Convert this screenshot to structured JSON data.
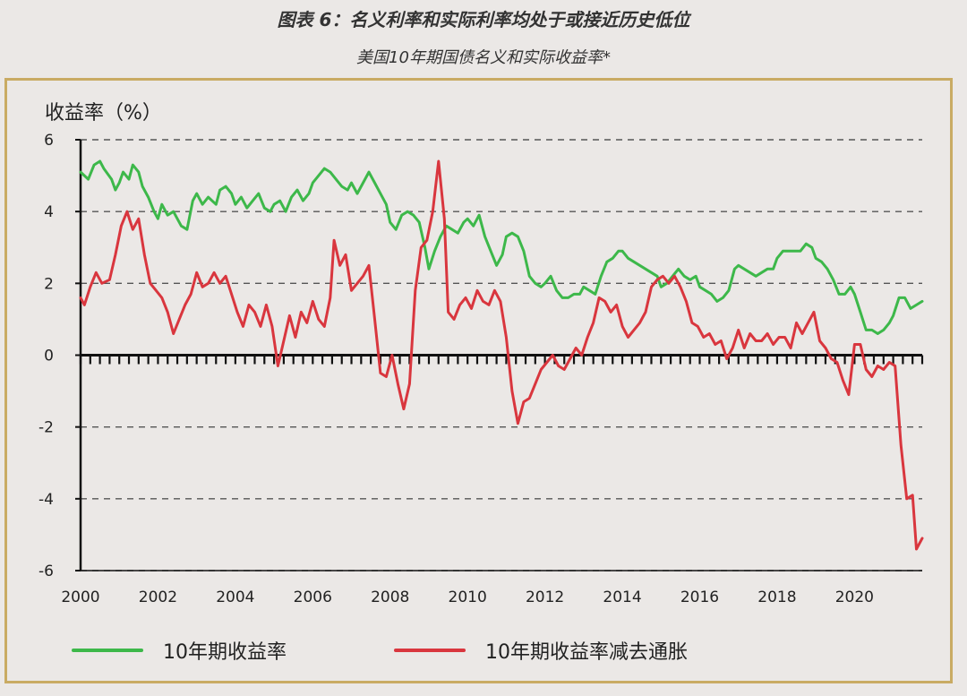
{
  "header": {
    "title": "图表 6：名义利率和实际利率均处于或接近历史低位",
    "subtitle": "美国10年期国债名义和实际收益率*"
  },
  "colors": {
    "nominal": "#3db84a",
    "real": "#d9363e",
    "border": "#c9ab63",
    "background": "#ebe8e6"
  },
  "chart_data": {
    "type": "line",
    "ylabel": "收益率（%）",
    "xlabel": "",
    "xlim": [
      2000,
      2021.75
    ],
    "ylim": [
      -6,
      6
    ],
    "x_ticks": [
      "2000",
      "2002",
      "2004",
      "2006",
      "2008",
      "2010",
      "2012",
      "2014",
      "2016",
      "2018",
      "2020"
    ],
    "y_ticks": [
      "6",
      "4",
      "2",
      "0",
      "-2",
      "-4",
      "-6"
    ],
    "grid": "horizontal dashed",
    "legend_position": "bottom",
    "series": [
      {
        "name": "10年期收益率",
        "color": "#3db84a",
        "points": [
          [
            2000.0,
            5.1
          ],
          [
            2000.1,
            5.0
          ],
          [
            2000.2,
            4.9
          ],
          [
            2000.35,
            5.3
          ],
          [
            2000.5,
            5.4
          ],
          [
            2000.6,
            5.2
          ],
          [
            2000.8,
            4.9
          ],
          [
            2000.9,
            4.6
          ],
          [
            2001.0,
            4.8
          ],
          [
            2001.1,
            5.1
          ],
          [
            2001.25,
            4.9
          ],
          [
            2001.35,
            5.3
          ],
          [
            2001.5,
            5.1
          ],
          [
            2001.6,
            4.7
          ],
          [
            2001.75,
            4.4
          ],
          [
            2001.9,
            4.0
          ],
          [
            2002.0,
            3.8
          ],
          [
            2002.1,
            4.2
          ],
          [
            2002.25,
            3.9
          ],
          [
            2002.4,
            4.0
          ],
          [
            2002.6,
            3.6
          ],
          [
            2002.75,
            3.5
          ],
          [
            2002.9,
            4.3
          ],
          [
            2003.0,
            4.5
          ],
          [
            2003.15,
            4.2
          ],
          [
            2003.3,
            4.4
          ],
          [
            2003.5,
            4.2
          ],
          [
            2003.6,
            4.6
          ],
          [
            2003.75,
            4.7
          ],
          [
            2003.9,
            4.5
          ],
          [
            2004.0,
            4.2
          ],
          [
            2004.15,
            4.4
          ],
          [
            2004.3,
            4.1
          ],
          [
            2004.45,
            4.3
          ],
          [
            2004.6,
            4.5
          ],
          [
            2004.75,
            4.1
          ],
          [
            2004.9,
            4.0
          ],
          [
            2005.0,
            4.2
          ],
          [
            2005.15,
            4.3
          ],
          [
            2005.3,
            4.0
          ],
          [
            2005.45,
            4.4
          ],
          [
            2005.6,
            4.6
          ],
          [
            2005.75,
            4.3
          ],
          [
            2005.9,
            4.5
          ],
          [
            2006.0,
            4.8
          ],
          [
            2006.15,
            5.0
          ],
          [
            2006.3,
            5.2
          ],
          [
            2006.45,
            5.1
          ],
          [
            2006.6,
            4.9
          ],
          [
            2006.75,
            4.7
          ],
          [
            2006.9,
            4.6
          ],
          [
            2007.0,
            4.8
          ],
          [
            2007.15,
            4.5
          ],
          [
            2007.3,
            4.8
          ],
          [
            2007.45,
            5.1
          ],
          [
            2007.6,
            4.8
          ],
          [
            2007.75,
            4.5
          ],
          [
            2007.9,
            4.2
          ],
          [
            2008.0,
            3.7
          ],
          [
            2008.15,
            3.5
          ],
          [
            2008.3,
            3.9
          ],
          [
            2008.45,
            4.0
          ],
          [
            2008.6,
            3.9
          ],
          [
            2008.75,
            3.7
          ],
          [
            2008.9,
            3.0
          ],
          [
            2009.0,
            2.4
          ],
          [
            2009.15,
            2.9
          ],
          [
            2009.3,
            3.3
          ],
          [
            2009.45,
            3.6
          ],
          [
            2009.6,
            3.5
          ],
          [
            2009.75,
            3.4
          ],
          [
            2009.9,
            3.7
          ],
          [
            2010.0,
            3.8
          ],
          [
            2010.15,
            3.6
          ],
          [
            2010.3,
            3.9
          ],
          [
            2010.45,
            3.3
          ],
          [
            2010.6,
            2.9
          ],
          [
            2010.75,
            2.5
          ],
          [
            2010.9,
            2.8
          ],
          [
            2011.0,
            3.3
          ],
          [
            2011.15,
            3.4
          ],
          [
            2011.3,
            3.3
          ],
          [
            2011.45,
            2.9
          ],
          [
            2011.6,
            2.2
          ],
          [
            2011.75,
            2.0
          ],
          [
            2011.9,
            1.9
          ],
          [
            2012.0,
            2.0
          ],
          [
            2012.15,
            2.2
          ],
          [
            2012.3,
            1.8
          ],
          [
            2012.45,
            1.6
          ],
          [
            2012.6,
            1.6
          ],
          [
            2012.75,
            1.7
          ],
          [
            2012.9,
            1.7
          ],
          [
            2013.0,
            1.9
          ],
          [
            2013.15,
            1.8
          ],
          [
            2013.3,
            1.7
          ],
          [
            2013.45,
            2.2
          ],
          [
            2013.6,
            2.6
          ],
          [
            2013.75,
            2.7
          ],
          [
            2013.9,
            2.9
          ],
          [
            2014.0,
            2.9
          ],
          [
            2014.15,
            2.7
          ],
          [
            2014.3,
            2.6
          ],
          [
            2014.45,
            2.5
          ],
          [
            2014.6,
            2.4
          ],
          [
            2014.75,
            2.3
          ],
          [
            2014.9,
            2.2
          ],
          [
            2015.0,
            1.9
          ],
          [
            2015.15,
            2.0
          ],
          [
            2015.3,
            2.2
          ],
          [
            2015.45,
            2.4
          ],
          [
            2015.6,
            2.2
          ],
          [
            2015.75,
            2.1
          ],
          [
            2015.9,
            2.2
          ],
          [
            2016.0,
            1.9
          ],
          [
            2016.15,
            1.8
          ],
          [
            2016.3,
            1.7
          ],
          [
            2016.45,
            1.5
          ],
          [
            2016.6,
            1.6
          ],
          [
            2016.75,
            1.8
          ],
          [
            2016.9,
            2.4
          ],
          [
            2017.0,
            2.5
          ],
          [
            2017.15,
            2.4
          ],
          [
            2017.3,
            2.3
          ],
          [
            2017.45,
            2.2
          ],
          [
            2017.6,
            2.3
          ],
          [
            2017.75,
            2.4
          ],
          [
            2017.9,
            2.4
          ],
          [
            2018.0,
            2.7
          ],
          [
            2018.15,
            2.9
          ],
          [
            2018.3,
            2.9
          ],
          [
            2018.45,
            2.9
          ],
          [
            2018.6,
            2.9
          ],
          [
            2018.75,
            3.1
          ],
          [
            2018.9,
            3.0
          ],
          [
            2019.0,
            2.7
          ],
          [
            2019.15,
            2.6
          ],
          [
            2019.3,
            2.4
          ],
          [
            2019.45,
            2.1
          ],
          [
            2019.6,
            1.7
          ],
          [
            2019.75,
            1.7
          ],
          [
            2019.9,
            1.9
          ],
          [
            2020.0,
            1.7
          ],
          [
            2020.15,
            1.2
          ],
          [
            2020.3,
            0.7
          ],
          [
            2020.45,
            0.7
          ],
          [
            2020.6,
            0.6
          ],
          [
            2020.75,
            0.7
          ],
          [
            2020.9,
            0.9
          ],
          [
            2021.0,
            1.1
          ],
          [
            2021.15,
            1.6
          ],
          [
            2021.3,
            1.6
          ],
          [
            2021.45,
            1.3
          ],
          [
            2021.6,
            1.4
          ],
          [
            2021.75,
            1.5
          ]
        ]
      },
      {
        "name": "10年期收益率减去通胀",
        "color": "#d9363e",
        "points": [
          [
            2000.0,
            1.6
          ],
          [
            2000.1,
            1.4
          ],
          [
            2000.25,
            1.9
          ],
          [
            2000.4,
            2.3
          ],
          [
            2000.55,
            2.0
          ],
          [
            2000.75,
            2.1
          ],
          [
            2000.9,
            2.8
          ],
          [
            2001.05,
            3.6
          ],
          [
            2001.2,
            4.0
          ],
          [
            2001.35,
            3.5
          ],
          [
            2001.5,
            3.8
          ],
          [
            2001.65,
            2.8
          ],
          [
            2001.8,
            2.0
          ],
          [
            2001.95,
            1.8
          ],
          [
            2002.1,
            1.6
          ],
          [
            2002.25,
            1.2
          ],
          [
            2002.4,
            0.6
          ],
          [
            2002.55,
            1.0
          ],
          [
            2002.7,
            1.4
          ],
          [
            2002.85,
            1.7
          ],
          [
            2003.0,
            2.3
          ],
          [
            2003.15,
            1.9
          ],
          [
            2003.3,
            2.0
          ],
          [
            2003.45,
            2.3
          ],
          [
            2003.6,
            2.0
          ],
          [
            2003.75,
            2.2
          ],
          [
            2003.9,
            1.7
          ],
          [
            2004.05,
            1.2
          ],
          [
            2004.2,
            0.8
          ],
          [
            2004.35,
            1.4
          ],
          [
            2004.5,
            1.2
          ],
          [
            2004.65,
            0.8
          ],
          [
            2004.8,
            1.4
          ],
          [
            2004.95,
            0.8
          ],
          [
            2005.1,
            -0.3
          ],
          [
            2005.25,
            0.4
          ],
          [
            2005.4,
            1.1
          ],
          [
            2005.55,
            0.5
          ],
          [
            2005.7,
            1.2
          ],
          [
            2005.85,
            0.9
          ],
          [
            2006.0,
            1.5
          ],
          [
            2006.15,
            1.0
          ],
          [
            2006.3,
            0.8
          ],
          [
            2006.45,
            1.6
          ],
          [
            2006.55,
            3.2
          ],
          [
            2006.7,
            2.5
          ],
          [
            2006.85,
            2.8
          ],
          [
            2007.0,
            1.8
          ],
          [
            2007.15,
            2.0
          ],
          [
            2007.3,
            2.2
          ],
          [
            2007.45,
            2.5
          ],
          [
            2007.6,
            1.0
          ],
          [
            2007.75,
            -0.5
          ],
          [
            2007.9,
            -0.6
          ],
          [
            2008.05,
            0.0
          ],
          [
            2008.2,
            -0.8
          ],
          [
            2008.35,
            -1.5
          ],
          [
            2008.5,
            -0.8
          ],
          [
            2008.65,
            1.8
          ],
          [
            2008.8,
            3.0
          ],
          [
            2008.95,
            3.2
          ],
          [
            2009.1,
            4.0
          ],
          [
            2009.25,
            5.4
          ],
          [
            2009.4,
            3.8
          ],
          [
            2009.5,
            1.2
          ],
          [
            2009.65,
            1.0
          ],
          [
            2009.8,
            1.4
          ],
          [
            2009.95,
            1.6
          ],
          [
            2010.1,
            1.3
          ],
          [
            2010.25,
            1.8
          ],
          [
            2010.4,
            1.5
          ],
          [
            2010.55,
            1.4
          ],
          [
            2010.7,
            1.8
          ],
          [
            2010.85,
            1.5
          ],
          [
            2011.0,
            0.5
          ],
          [
            2011.15,
            -1.0
          ],
          [
            2011.3,
            -1.9
          ],
          [
            2011.45,
            -1.3
          ],
          [
            2011.6,
            -1.2
          ],
          [
            2011.75,
            -0.8
          ],
          [
            2011.9,
            -0.4
          ],
          [
            2012.05,
            -0.2
          ],
          [
            2012.2,
            0.0
          ],
          [
            2012.35,
            -0.3
          ],
          [
            2012.5,
            -0.4
          ],
          [
            2012.65,
            -0.1
          ],
          [
            2012.8,
            0.2
          ],
          [
            2012.95,
            0.0
          ],
          [
            2013.1,
            0.5
          ],
          [
            2013.25,
            0.9
          ],
          [
            2013.4,
            1.6
          ],
          [
            2013.55,
            1.5
          ],
          [
            2013.7,
            1.2
          ],
          [
            2013.85,
            1.4
          ],
          [
            2014.0,
            0.8
          ],
          [
            2014.15,
            0.5
          ],
          [
            2014.3,
            0.7
          ],
          [
            2014.45,
            0.9
          ],
          [
            2014.6,
            1.2
          ],
          [
            2014.75,
            1.9
          ],
          [
            2014.9,
            2.1
          ],
          [
            2015.05,
            2.2
          ],
          [
            2015.2,
            2.0
          ],
          [
            2015.35,
            2.2
          ],
          [
            2015.5,
            1.9
          ],
          [
            2015.65,
            1.5
          ],
          [
            2015.8,
            0.9
          ],
          [
            2015.95,
            0.8
          ],
          [
            2016.1,
            0.5
          ],
          [
            2016.25,
            0.6
          ],
          [
            2016.4,
            0.3
          ],
          [
            2016.55,
            0.4
          ],
          [
            2016.7,
            -0.1
          ],
          [
            2016.85,
            0.2
          ],
          [
            2017.0,
            0.7
          ],
          [
            2017.15,
            0.2
          ],
          [
            2017.3,
            0.6
          ],
          [
            2017.45,
            0.4
          ],
          [
            2017.6,
            0.4
          ],
          [
            2017.75,
            0.6
          ],
          [
            2017.9,
            0.3
          ],
          [
            2018.05,
            0.5
          ],
          [
            2018.2,
            0.5
          ],
          [
            2018.35,
            0.2
          ],
          [
            2018.5,
            0.9
          ],
          [
            2018.65,
            0.6
          ],
          [
            2018.8,
            0.9
          ],
          [
            2018.95,
            1.2
          ],
          [
            2019.1,
            0.4
          ],
          [
            2019.25,
            0.2
          ],
          [
            2019.4,
            -0.1
          ],
          [
            2019.55,
            -0.2
          ],
          [
            2019.7,
            -0.7
          ],
          [
            2019.85,
            -1.1
          ],
          [
            2020.0,
            0.3
          ],
          [
            2020.15,
            0.3
          ],
          [
            2020.3,
            -0.4
          ],
          [
            2020.45,
            -0.6
          ],
          [
            2020.6,
            -0.3
          ],
          [
            2020.75,
            -0.4
          ],
          [
            2020.9,
            -0.2
          ],
          [
            2021.05,
            -0.3
          ],
          [
            2021.2,
            -2.5
          ],
          [
            2021.35,
            -4.0
          ],
          [
            2021.5,
            -3.9
          ],
          [
            2021.6,
            -5.4
          ],
          [
            2021.75,
            -5.1
          ]
        ]
      }
    ]
  }
}
